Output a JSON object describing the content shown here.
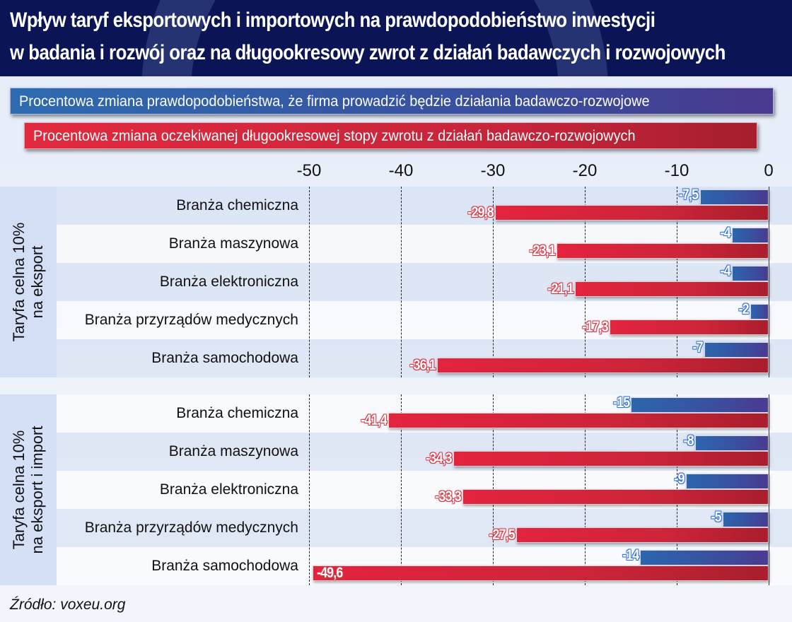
{
  "header": {
    "title_line1": "Wpływ taryf eksportowych i importowych na prawdopodobieństwo inwestycji",
    "title_line2": "w badania i rozwój oraz na długookresowy zwrot z działań badawczych i rozwojowych"
  },
  "legend": {
    "blue_label": "Procentowa zmiana prawdopodobieństwa, że firma prowadzić będzie działania badawczo-rozwojowe",
    "red_label": "Procentowa zmiana oczekiwanej długookresowej stopy zwrotu z działań badawczo-rozwojowych"
  },
  "source": "Źródło: voxeu.org",
  "chart_data": {
    "type": "bar",
    "orientation": "horizontal",
    "title": "Wpływ taryf eksportowych i importowych na prawdopodobieństwo inwestycji w badania i rozwój oraz na długookresowy zwrot z działań badawczych i rozwojowych",
    "xlim": [
      -50,
      0
    ],
    "xticks": [
      "-50",
      "-40",
      "-30",
      "-20",
      "-10",
      "0"
    ],
    "xtick_values": [
      -50,
      -40,
      -30,
      -20,
      -10,
      0
    ],
    "x_axis_position": "top",
    "grid": "vertical dashed",
    "legend_position": "top",
    "colors": {
      "probability": "#2e6bb0",
      "return": "#e22a3e"
    },
    "series_names": [
      "Procentowa zmiana prawdopodobieństwa, że firma prowadzić będzie działania badawczo-rozwojowe",
      "Procentowa zmiana oczekiwanej długookresowej stopy zwrotu z działań badawczo-rozwojowych"
    ],
    "groups": [
      {
        "label_line1": "Taryfa celna 10%",
        "label_line2": "na eksport",
        "categories": [
          "Branża chemiczna",
          "Branża maszynowa",
          "Branża elektroniczna",
          "Branża przyrządów medycznych",
          "Branża samochodowa"
        ],
        "probability": [
          -7.5,
          -4,
          -4,
          -2,
          -7
        ],
        "probability_labels": [
          "-7,5",
          "-4",
          "-4",
          "-2",
          "-7"
        ],
        "return": [
          -29.8,
          -23.1,
          -21.1,
          -17.3,
          -36.1
        ],
        "return_labels": [
          "-29,8",
          "-23,1",
          "-21,1",
          "-17,3",
          "-36,1"
        ]
      },
      {
        "label_line1": "Taryfa celna 10%",
        "label_line2": "na eksport i import",
        "categories": [
          "Branża chemiczna",
          "Branża maszynowa",
          "Branża elektroniczna",
          "Branża przyrządów medycznych",
          "Branża samochodowa"
        ],
        "probability": [
          -15,
          -8,
          -9,
          -5,
          -14
        ],
        "probability_labels": [
          "-15",
          "-8",
          "-9",
          "-5",
          "-14"
        ],
        "return": [
          -41.4,
          -34.3,
          -33.3,
          -27.5,
          -49.6
        ],
        "return_labels": [
          "-41,4",
          "-34,3",
          "-33,3",
          "-27,5",
          "-49,6"
        ]
      }
    ]
  }
}
